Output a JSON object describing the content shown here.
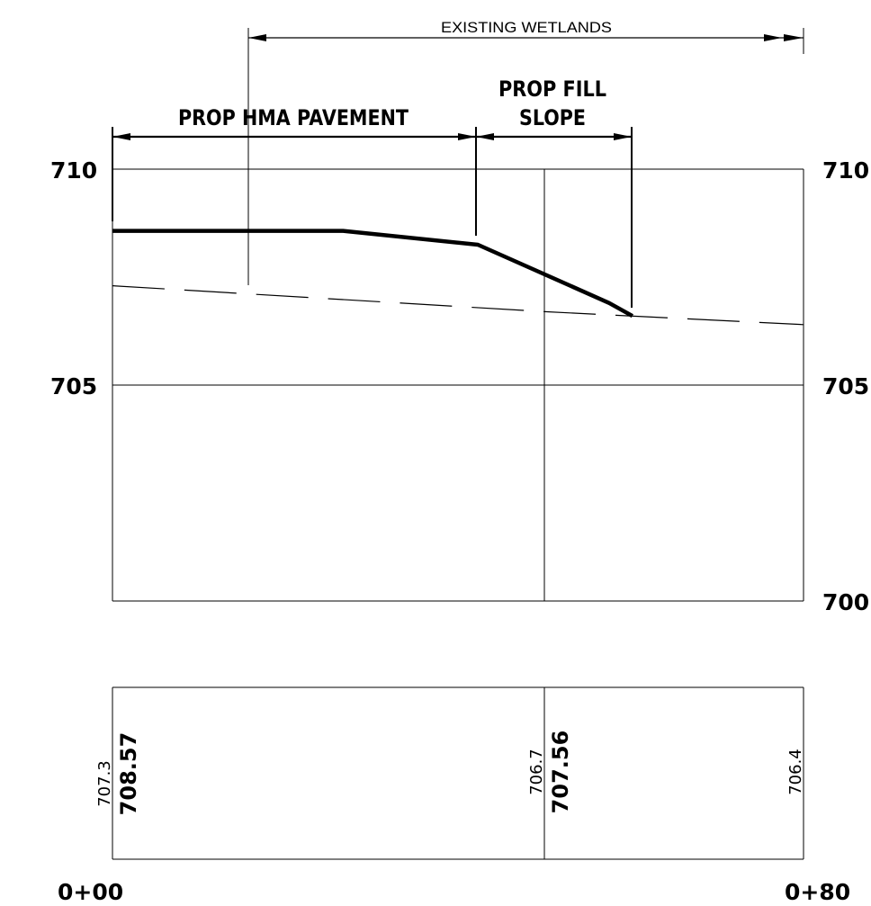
{
  "labels": {
    "existing_wetlands": "EXISTING WETLANDS",
    "prop_hma_pavement": "PROP HMA PAVEMENT",
    "prop_fill_slope_line1": "PROP FILL",
    "prop_fill_slope_line2": "SLOPE"
  },
  "elevation_labels": {
    "left": [
      "710",
      "705"
    ],
    "right": [
      "710",
      "705",
      "700"
    ]
  },
  "stations": {
    "start": "0+00",
    "end": "0+80"
  },
  "data_rows": [
    {
      "existing": "707.3",
      "proposed": "708.57"
    },
    {
      "existing": "706.7",
      "proposed": "707.56"
    },
    {
      "existing": "706.4",
      "proposed": ""
    }
  ],
  "chart_data": {
    "type": "line",
    "xlabel": "",
    "ylabel": "",
    "x_range": [
      "0+00",
      "0+80"
    ],
    "ylim": [
      700,
      710
    ],
    "grid": true,
    "series": [
      {
        "style": "solid-heavy",
        "points": [
          [
            0,
            708.57
          ],
          [
            26.7,
            708.57
          ],
          [
            42.3,
            708.25
          ],
          [
            57.5,
            706.9
          ],
          [
            60.2,
            706.6
          ]
        ]
      },
      {
        "style": "dashed",
        "points": [
          [
            0,
            707.3
          ],
          [
            50,
            706.7
          ],
          [
            80,
            706.4
          ]
        ]
      }
    ]
  }
}
